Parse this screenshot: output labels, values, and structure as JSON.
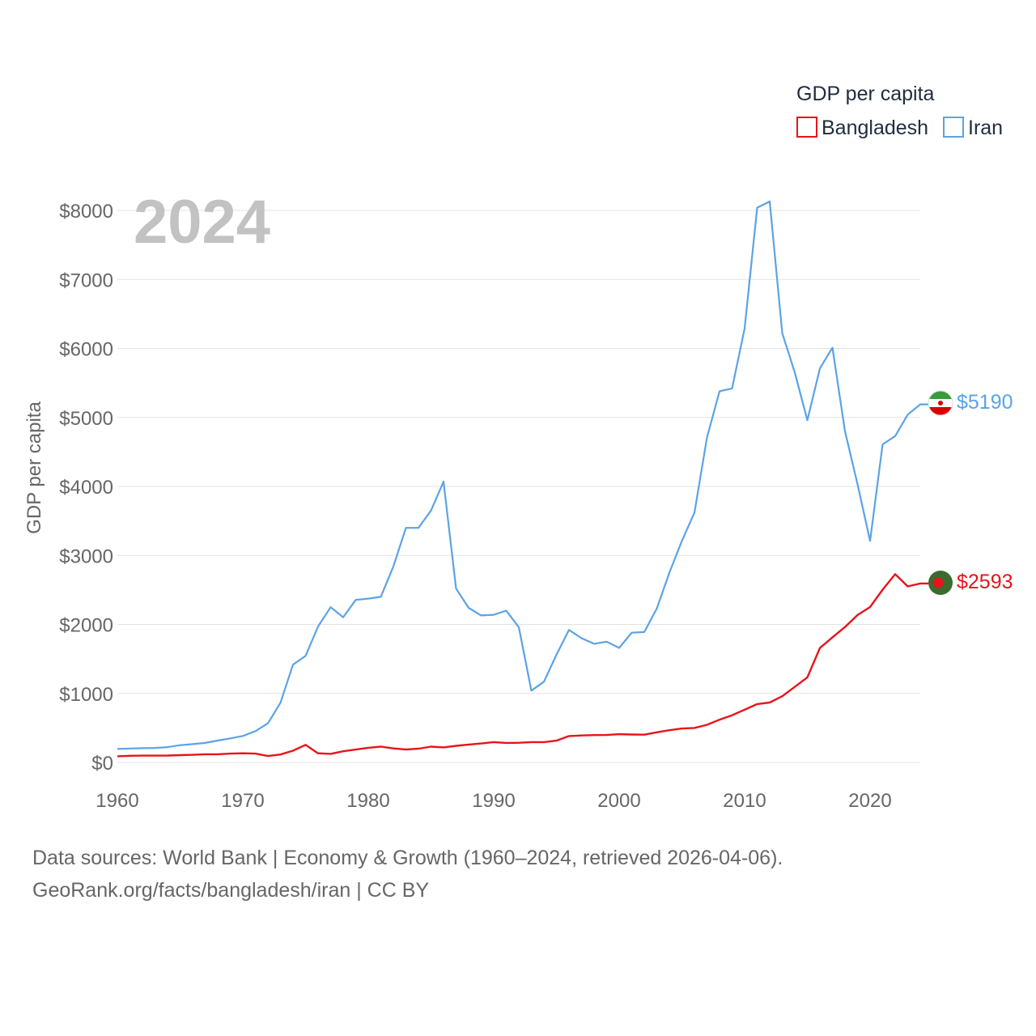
{
  "colors": {
    "bangladesh": "#e8141b",
    "iran": "#5ba3e6",
    "grid": "#e3e3e3",
    "tick": "#666666"
  },
  "legend": {
    "title": "GDP per capita",
    "items": [
      "Bangladesh",
      "Iran"
    ]
  },
  "year_label": "2024",
  "footer": {
    "line1": "Data sources: World Bank | Economy & Growth (1960–2024, retrieved 2026-04-06).",
    "line2": "GeoRank.org/facts/bangladesh/iran | CC BY"
  },
  "end_labels": {
    "iran": "$5190",
    "bangladesh": "$2593"
  },
  "flags": {
    "iran": "iran-flag-icon",
    "bangladesh": "bangladesh-flag-icon"
  },
  "chart_data": {
    "type": "line",
    "title": "",
    "xlabel": "",
    "ylabel": "GDP per capita",
    "xlim": [
      1960,
      2024
    ],
    "ylim": [
      0,
      8000
    ],
    "x_ticks": [
      1960,
      1970,
      1980,
      1990,
      2000,
      2010,
      2020
    ],
    "y_ticks": [
      0,
      1000,
      2000,
      3000,
      4000,
      5000,
      6000,
      7000,
      8000
    ],
    "y_tick_labels": [
      "$0",
      "$1000",
      "$2000",
      "$3000",
      "$4000",
      "$5000",
      "$6000",
      "$7000",
      "$8000"
    ],
    "x_tick_labels": [
      "1960",
      "1970",
      "1980",
      "1990",
      "2000",
      "2010",
      "2020"
    ],
    "legend_position": "top-right",
    "x": [
      1960,
      1961,
      1962,
      1963,
      1964,
      1965,
      1966,
      1967,
      1968,
      1969,
      1970,
      1971,
      1972,
      1973,
      1974,
      1975,
      1976,
      1977,
      1978,
      1979,
      1980,
      1981,
      1982,
      1983,
      1984,
      1985,
      1986,
      1987,
      1988,
      1989,
      1990,
      1991,
      1992,
      1993,
      1994,
      1995,
      1996,
      1997,
      1998,
      1999,
      2000,
      2001,
      2002,
      2003,
      2004,
      2005,
      2006,
      2007,
      2008,
      2009,
      2010,
      2011,
      2012,
      2013,
      2014,
      2015,
      2016,
      2017,
      2018,
      2019,
      2020,
      2021,
      2022,
      2023,
      2024
    ],
    "series": [
      {
        "name": "Bangladesh",
        "values": [
          89,
          96,
          99,
          99,
          100,
          105,
          110,
          118,
          118,
          128,
          133,
          128,
          93,
          115,
          170,
          255,
          132,
          124,
          162,
          186,
          212,
          230,
          203,
          188,
          199,
          229,
          218,
          240,
          259,
          274,
          294,
          283,
          285,
          294,
          294,
          316,
          382,
          391,
          397,
          398,
          409,
          405,
          402,
          436,
          467,
          492,
          500,
          545,
          619,
          684,
          764,
          846,
          868,
          960,
          1096,
          1233,
          1659,
          1813,
          1963,
          2136,
          2252,
          2504,
          2729,
          2551,
          2593
        ]
      },
      {
        "name": "Iran",
        "values": [
          195,
          202,
          207,
          210,
          222,
          250,
          265,
          283,
          317,
          348,
          384,
          453,
          566,
          865,
          1417,
          1544,
          1971,
          2250,
          2104,
          2356,
          2374,
          2400,
          2840,
          3400,
          3400,
          3650,
          4070,
          2520,
          2240,
          2130,
          2140,
          2200,
          1960,
          1040,
          1170,
          1560,
          1920,
          1800,
          1720,
          1750,
          1660,
          1880,
          1890,
          2230,
          2750,
          3210,
          3620,
          4710,
          5380,
          5420,
          6290,
          8040,
          8130,
          6220,
          5650,
          4960,
          5710,
          6010,
          4800,
          4030,
          3210,
          4610,
          4730,
          5040,
          5190
        ]
      }
    ]
  }
}
